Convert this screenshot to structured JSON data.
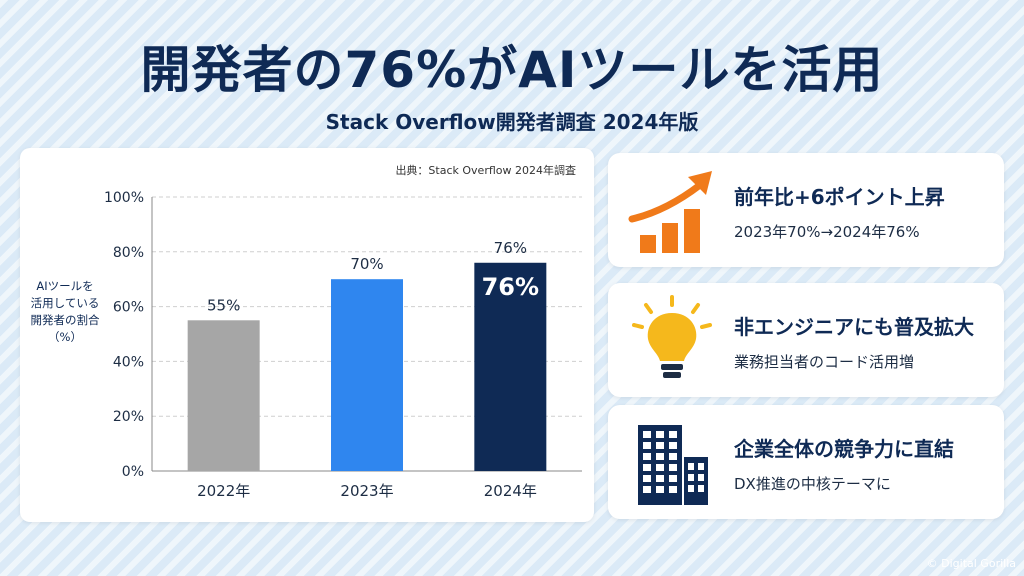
{
  "header": {
    "title": "開発者の76%がAIツールを活用",
    "subtitle": "Stack Overflow開発者調査 2024年版"
  },
  "chart_data": {
    "type": "bar",
    "source": "出典：Stack Overflow 2024年調査",
    "ylabel_lines": [
      "AIツールを",
      "活用している",
      "開発者の割合",
      "（%）"
    ],
    "categories": [
      "2022年",
      "2023年",
      "2024年"
    ],
    "values": [
      55,
      70,
      76
    ],
    "value_labels": [
      "55%",
      "70%",
      "76%"
    ],
    "highlight_label": "76%",
    "colors": [
      "#a6a6a6",
      "#2f86ef",
      "#0f2a55"
    ],
    "ylim": [
      0,
      100
    ],
    "yticks": [
      0,
      20,
      40,
      60,
      80,
      100
    ],
    "ytick_labels": [
      "0%",
      "20%",
      "40%",
      "60%",
      "80%",
      "100%"
    ],
    "grid": true
  },
  "cards": [
    {
      "icon": "growth-chart-icon",
      "title": "前年比+6ポイント上昇",
      "desc": "2023年70%→2024年76%",
      "color": "#f07a1a"
    },
    {
      "icon": "lightbulb-icon",
      "title": "非エンジニアにも普及拡大",
      "desc": "業務担当者のコード活用増",
      "color": "#f5b81c"
    },
    {
      "icon": "office-building-icon",
      "title": "企業全体の競争力に直結",
      "desc": "DX推進の中核テーマに",
      "color": "#0f2a55"
    }
  ],
  "footer": {
    "copyright": "© Digital Gorilla"
  }
}
